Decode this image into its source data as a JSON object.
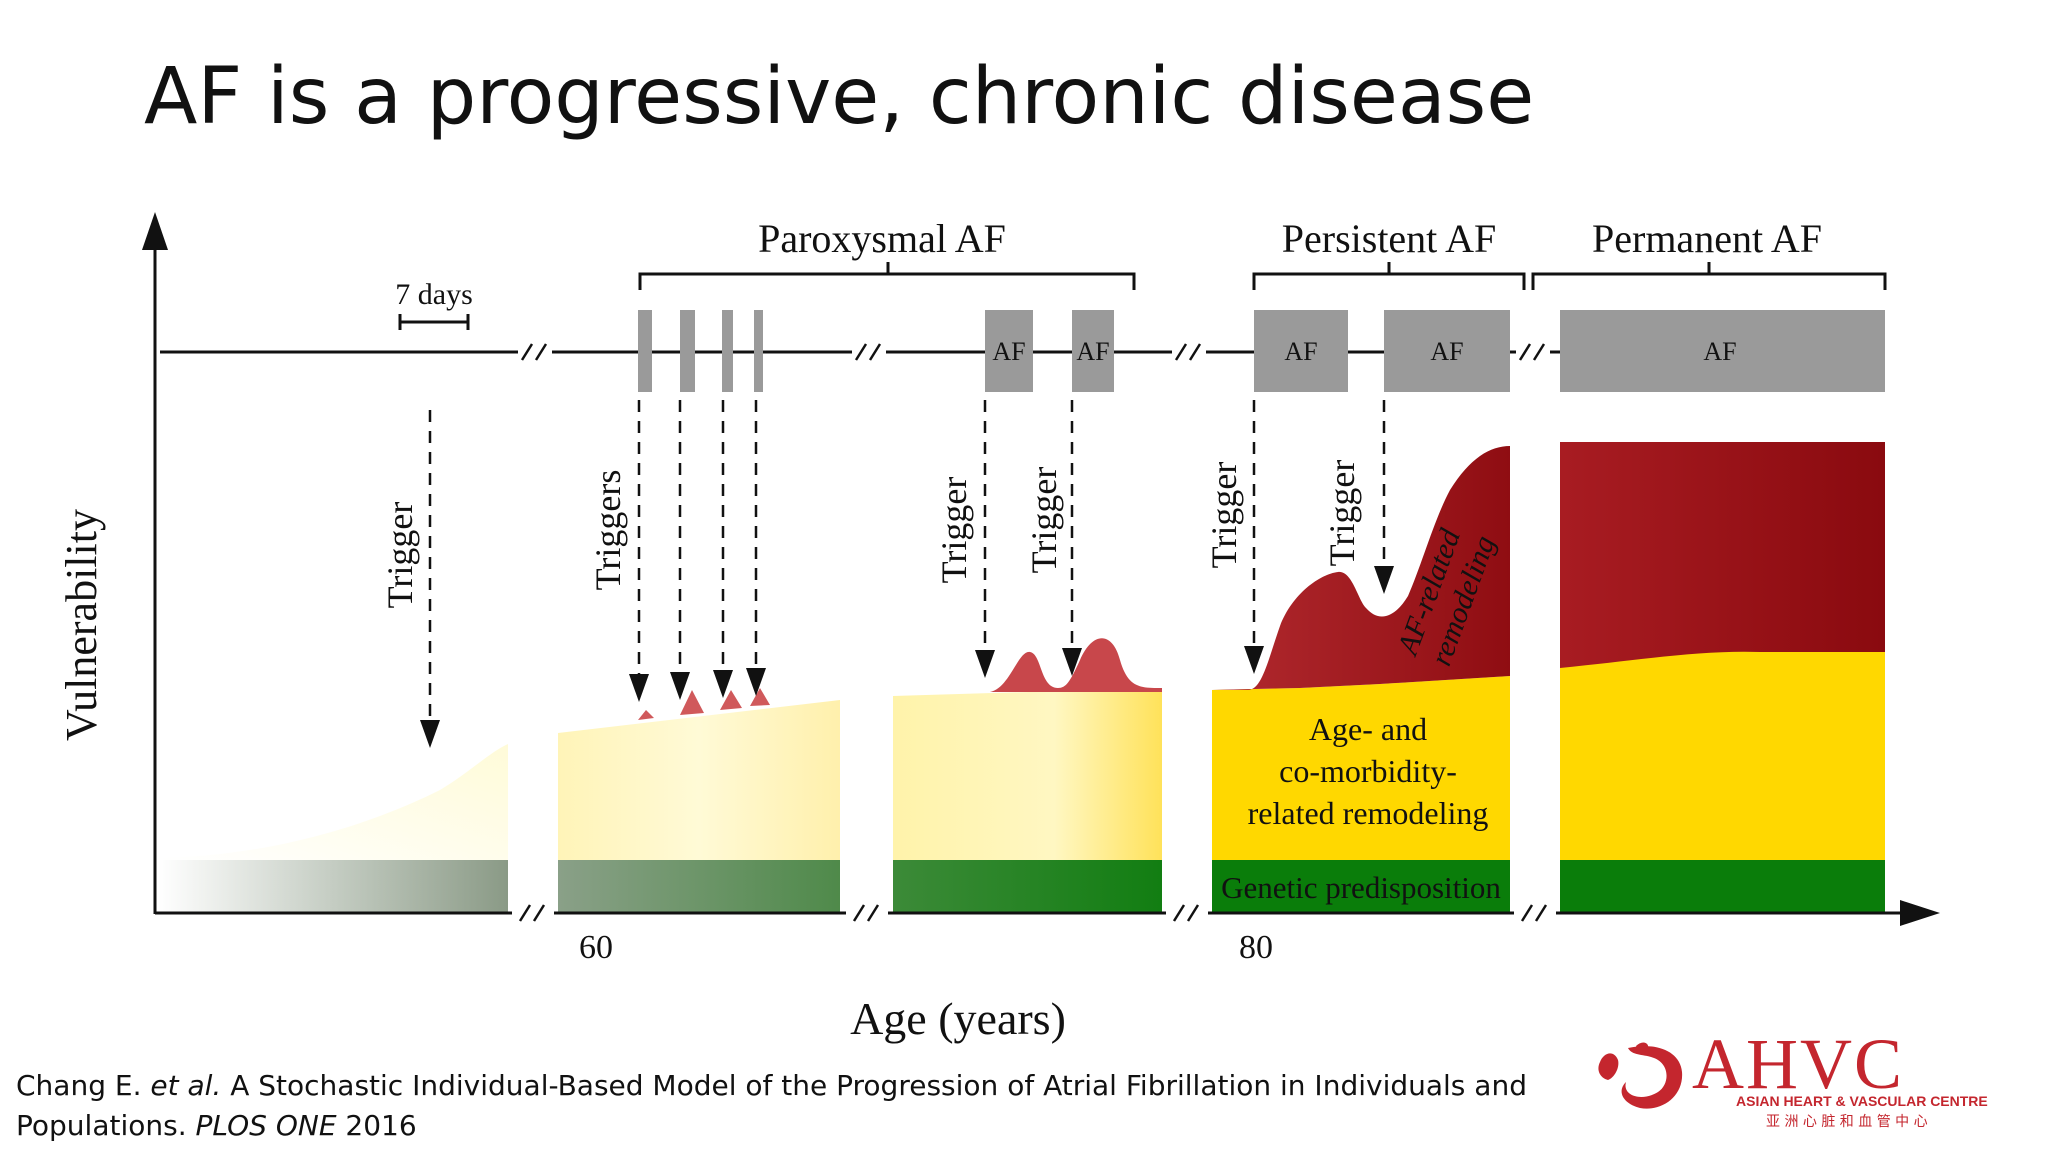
{
  "slide": {
    "title": "AF is a progressive, chronic disease"
  },
  "diagram": {
    "y_axis_label": "Vulnerability",
    "x_axis_label": "Age (years)",
    "x_ticks": [
      "60",
      "80"
    ],
    "scale_bar_label": "7 days",
    "phases": [
      {
        "label": "Paroxysmal AF"
      },
      {
        "label": "Persistent AF"
      },
      {
        "label": "Permanent AF"
      }
    ],
    "episode_label": "AF",
    "trigger_labels": {
      "single": "Trigger",
      "plural": "Triggers"
    },
    "layer_labels": {
      "age_comorbidity_line1": "Age- and",
      "age_comorbidity_line2": "co-morbidity-",
      "age_comorbidity_line3": "related remodeling",
      "genetic": "Genetic predisposition",
      "af_related_line1": "AF-related",
      "af_related_line2": "remodeling"
    },
    "colors": {
      "genetic": "#0a7d0a",
      "age_comorbidity": "#ffd800",
      "af_remodeling": "#9b0d12",
      "episode": "#9a9a9a"
    }
  },
  "citation": {
    "line1_pre": "Chang E. ",
    "line1_italic": "et al.",
    "line1_post": " A Stochastic Individual-Based Model of the Progression of Atrial Fibrillation in Individuals and",
    "line2_pre": "Populations. ",
    "line2_italic": "PLOS ONE",
    "line2_post": " 2016"
  },
  "logo": {
    "mark": "AHVC",
    "subtitle": "ASIAN HEART & VASCULAR CENTRE",
    "chinese": "亚 洲 心 脏 和 血 管 中 心",
    "color": "#c4262e"
  }
}
